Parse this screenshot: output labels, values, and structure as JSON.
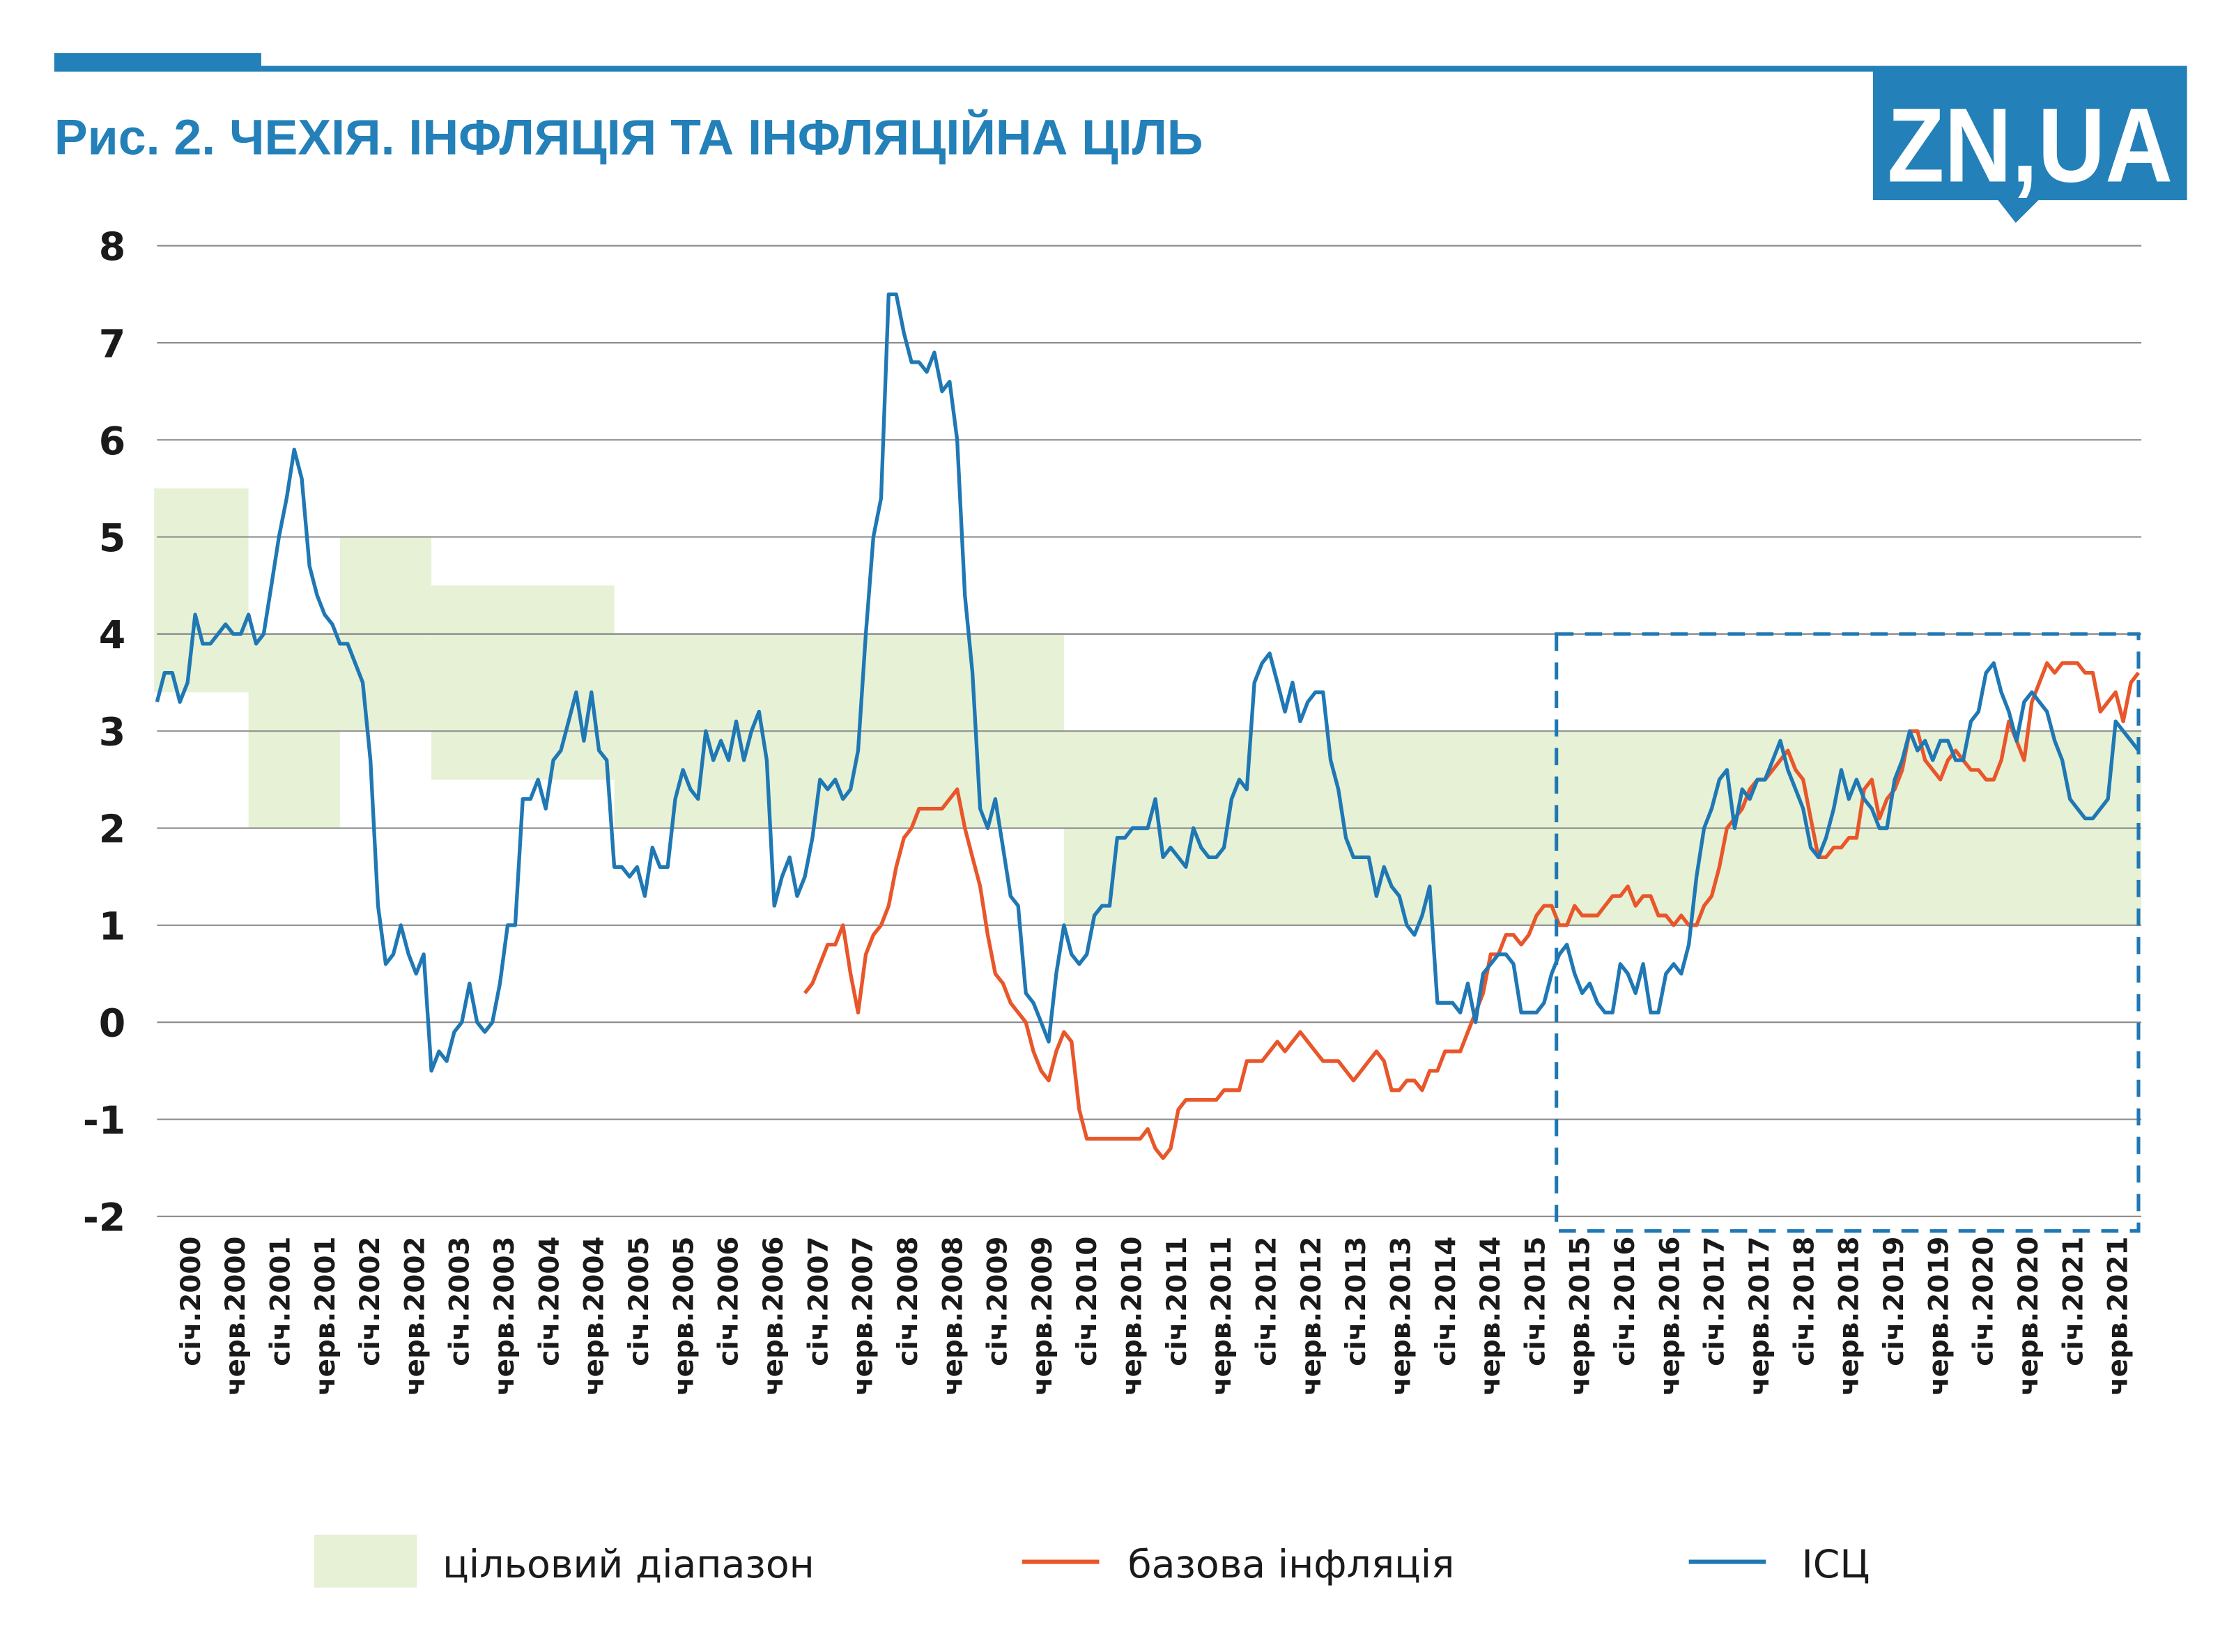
{
  "header": {
    "title": "Рис. 2. ЧЕХІЯ. ІНФЛЯЦІЯ ТА ІНФЛЯЦІЙНА ЦІЛЬ",
    "logo": "ZN,UA",
    "accent_color": "#2380b8"
  },
  "chart_data": {
    "type": "line",
    "title": "Рис. 2. ЧЕХІЯ. ІНФЛЯЦІЯ ТА ІНФЛЯЦІЙНА ЦІЛЬ",
    "xlabel": "",
    "ylabel": "",
    "ylim": [
      -2,
      8
    ],
    "yticks": [
      "8",
      "7",
      "6",
      "5",
      "4",
      "3",
      "2",
      "1",
      "0",
      "-1",
      "-2"
    ],
    "ytick_values": [
      8,
      7,
      6,
      5,
      4,
      3,
      2,
      1,
      0,
      -1,
      -2
    ],
    "grid": true,
    "legend_position": "bottom",
    "x_start": "січ.2000",
    "x_unit": "month",
    "xtick_labels": [
      "січ.2000",
      "черв.2000",
      "січ.2001",
      "черв.2001",
      "січ.2002",
      "черв.2002",
      "січ.2003",
      "черв.2003",
      "січ.2004",
      "черв.2004",
      "січ.2005",
      "черв.2005",
      "січ.2006",
      "черв.2006",
      "січ.2007",
      "черв.2007",
      "січ.2008",
      "черв.2008",
      "січ.2009",
      "черв.2009",
      "січ.2010",
      "черв.2010",
      "січ.2011",
      "черв.2011",
      "січ.2012",
      "черв.2012",
      "січ.2013",
      "черв.2013",
      "січ.2014",
      "черв.2014",
      "січ.2015",
      "черв.2015",
      "січ.2016",
      "черв.2016",
      "січ.2017",
      "черв.2017",
      "січ.2018",
      "черв.2018",
      "січ.2019",
      "черв.2019",
      "січ.2020",
      "черв.2020",
      "січ.2021",
      "черв.2021"
    ],
    "legend": {
      "band": "цільовий діапазон",
      "core": "базова інфляція",
      "cpi": "ІСЦ"
    },
    "colors": {
      "band": "#e6f1d6",
      "core": "#e8562a",
      "cpi": "#1f78b4",
      "highlight": "#1f78b4"
    },
    "target_band": [
      {
        "start_month": 0,
        "end_month": 12,
        "low": 3.4,
        "high": 5.5
      },
      {
        "start_month": 12,
        "end_month": 24,
        "low": 2,
        "high": 4
      },
      {
        "start_month": 24,
        "end_month": 36,
        "low": 3,
        "high": 5
      },
      {
        "start_month": 36,
        "end_month": 60,
        "low": 2.5,
        "high": 4.5
      },
      {
        "start_month": 60,
        "end_month": 119,
        "low": 2,
        "high": 4
      },
      {
        "start_month": 119,
        "end_month": 260,
        "low": 1,
        "high": 3
      }
    ],
    "highlight_box": {
      "start_month": 184,
      "end_month": 260,
      "low": -2.15,
      "high": 4
    },
    "series": [
      {
        "name": "ІСЦ",
        "start_month": 0,
        "values": [
          3.3,
          3.6,
          3.6,
          3.3,
          3.5,
          4.2,
          3.9,
          3.9,
          4.0,
          4.1,
          4.0,
          4.0,
          4.2,
          3.9,
          4.0,
          4.5,
          5.0,
          5.4,
          5.9,
          5.6,
          4.7,
          4.4,
          4.2,
          4.1,
          3.9,
          3.9,
          3.7,
          3.5,
          2.7,
          1.2,
          0.6,
          0.7,
          1.0,
          0.7,
          0.5,
          0.7,
          -0.5,
          -0.3,
          -0.4,
          -0.1,
          0.0,
          0.4,
          0.0,
          -0.1,
          0.0,
          0.4,
          1.0,
          1.0,
          2.3,
          2.3,
          2.5,
          2.2,
          2.7,
          2.8,
          3.1,
          3.4,
          2.9,
          3.4,
          2.8,
          2.7,
          1.6,
          1.6,
          1.5,
          1.6,
          1.3,
          1.8,
          1.6,
          1.6,
          2.3,
          2.6,
          2.4,
          2.3,
          3.0,
          2.7,
          2.9,
          2.7,
          3.1,
          2.7,
          3.0,
          3.2,
          2.7,
          1.2,
          1.5,
          1.7,
          1.3,
          1.5,
          1.9,
          2.5,
          2.4,
          2.5,
          2.3,
          2.4,
          2.8,
          4.0,
          5.0,
          5.4,
          7.5,
          7.5,
          7.1,
          6.8,
          6.8,
          6.7,
          6.9,
          6.5,
          6.6,
          6.0,
          4.4,
          3.6,
          2.2,
          2.0,
          2.3,
          1.8,
          1.3,
          1.2,
          0.3,
          0.2,
          0.0,
          -0.2,
          0.5,
          1.0,
          0.7,
          0.6,
          0.7,
          1.1,
          1.2,
          1.2,
          1.9,
          1.9,
          2.0,
          2.0,
          2.0,
          2.3,
          1.7,
          1.8,
          1.7,
          1.6,
          2.0,
          1.8,
          1.7,
          1.7,
          1.8,
          2.3,
          2.5,
          2.4,
          3.5,
          3.7,
          3.8,
          3.5,
          3.2,
          3.5,
          3.1,
          3.3,
          3.4,
          3.4,
          2.7,
          2.4,
          1.9,
          1.7,
          1.7,
          1.7,
          1.3,
          1.6,
          1.4,
          1.3,
          1.0,
          0.9,
          1.1,
          1.4,
          0.2,
          0.2,
          0.2,
          0.1,
          0.4,
          0.0,
          0.5,
          0.6,
          0.7,
          0.7,
          0.6,
          0.1,
          0.1,
          0.1,
          0.2,
          0.5,
          0.7,
          0.8,
          0.5,
          0.3,
          0.4,
          0.2,
          0.1,
          0.1,
          0.6,
          0.5,
          0.3,
          0.6,
          0.1,
          0.1,
          0.5,
          0.6,
          0.5,
          0.8,
          1.5,
          2.0,
          2.2,
          2.5,
          2.6,
          2.0,
          2.4,
          2.3,
          2.5,
          2.5,
          2.7,
          2.9,
          2.6,
          2.4,
          2.2,
          1.8,
          1.7,
          1.9,
          2.2,
          2.6,
          2.3,
          2.5,
          2.3,
          2.2,
          2.0,
          2.0,
          2.5,
          2.7,
          3.0,
          2.8,
          2.9,
          2.7,
          2.9,
          2.9,
          2.7,
          2.7,
          3.1,
          3.2,
          3.6,
          3.7,
          3.4,
          3.2,
          2.9,
          3.3,
          3.4,
          3.3,
          3.2,
          2.9,
          2.7,
          2.3,
          2.2,
          2.1,
          2.1,
          2.2,
          2.3,
          3.1,
          3.0,
          2.9,
          2.8
        ]
      },
      {
        "name": "базова інфляція",
        "start_month": 85,
        "values": [
          0.3,
          0.4,
          0.6,
          0.8,
          0.8,
          1.0,
          0.5,
          0.1,
          0.7,
          0.9,
          1.0,
          1.2,
          1.6,
          1.9,
          2.0,
          2.2,
          2.2,
          2.2,
          2.2,
          2.3,
          2.4,
          2.0,
          1.7,
          1.4,
          0.9,
          0.5,
          0.4,
          0.2,
          0.1,
          0.0,
          -0.3,
          -0.5,
          -0.6,
          -0.3,
          -0.1,
          -0.2,
          -0.9,
          -1.2,
          -1.2,
          -1.2,
          -1.2,
          -1.2,
          -1.2,
          -1.2,
          -1.2,
          -1.1,
          -1.3,
          -1.4,
          -1.3,
          -0.9,
          -0.8,
          -0.8,
          -0.8,
          -0.8,
          -0.8,
          -0.7,
          -0.7,
          -0.7,
          -0.4,
          -0.4,
          -0.4,
          -0.3,
          -0.2,
          -0.3,
          -0.2,
          -0.1,
          -0.2,
          -0.3,
          -0.4,
          -0.4,
          -0.4,
          -0.5,
          -0.6,
          -0.5,
          -0.4,
          -0.3,
          -0.4,
          -0.7,
          -0.7,
          -0.6,
          -0.6,
          -0.7,
          -0.5,
          -0.5,
          -0.3,
          -0.3,
          -0.3,
          -0.1,
          0.1,
          0.3,
          0.7,
          0.7,
          0.9,
          0.9,
          0.8,
          0.9,
          1.1,
          1.2,
          1.2,
          1.0,
          1.0,
          1.2,
          1.1,
          1.1,
          1.1,
          1.2,
          1.3,
          1.3,
          1.4,
          1.2,
          1.3,
          1.3,
          1.1,
          1.1,
          1.0,
          1.1,
          1.0,
          1.0,
          1.2,
          1.3,
          1.6,
          2.0,
          2.1,
          2.2,
          2.4,
          2.5,
          2.5,
          2.6,
          2.7,
          2.8,
          2.6,
          2.5,
          2.1,
          1.7,
          1.7,
          1.8,
          1.8,
          1.9,
          1.9,
          2.4,
          2.5,
          2.1,
          2.3,
          2.4,
          2.6,
          3.0,
          3.0,
          2.7,
          2.6,
          2.5,
          2.7,
          2.8,
          2.7,
          2.6,
          2.6,
          2.5,
          2.5,
          2.7,
          3.1,
          2.9,
          2.7,
          3.3,
          3.5,
          3.7,
          3.6,
          3.7,
          3.7,
          3.7,
          3.6,
          3.6,
          3.2,
          3.3,
          3.4,
          3.1,
          3.5,
          3.6
        ]
      }
    ]
  }
}
